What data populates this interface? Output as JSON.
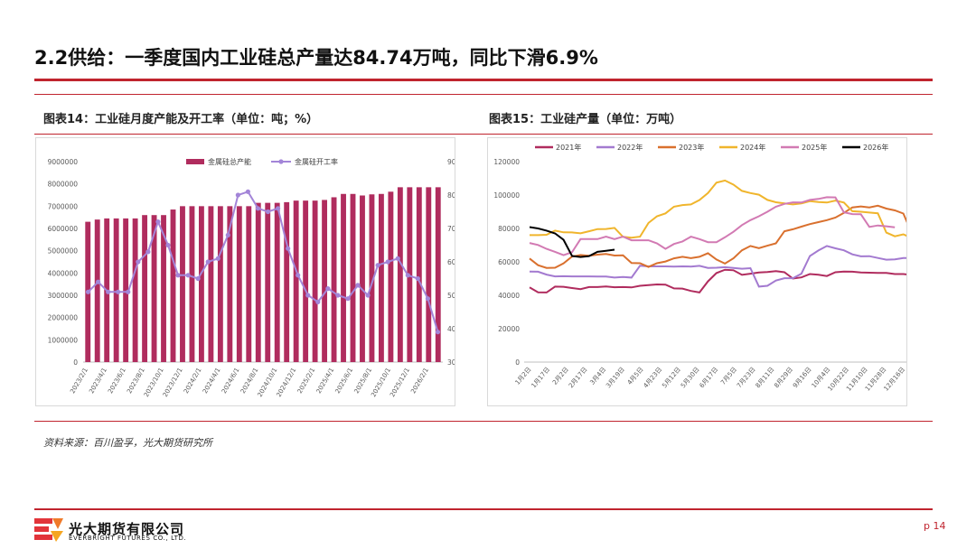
{
  "page": {
    "title": "2.2供给：一季度国内工业硅总产量达84.74万吨，同比下滑6.9%",
    "source": "资料来源：百川盈孚，光大期货研究所",
    "company_cn": "光大期货有限公司",
    "company_en": "EVERBRIGHT FUTURES CO., LTD.",
    "page_number": "p 14"
  },
  "charts": [
    {
      "caption": "图表14：工业硅月度产能及开工率（单位：吨；%）"
    },
    {
      "caption": "图表15：工业硅产量（单位：万吨）"
    }
  ],
  "colors": {
    "accent": "#c0242e",
    "bar": "#b02c5e",
    "rate_line": "#a385d8"
  },
  "chart_data": [
    {
      "type": "bar",
      "title": "",
      "xlabel": "",
      "ylabel": "",
      "ylim": [
        0,
        9000000
      ],
      "y2lim": [
        30,
        90
      ],
      "yticks": [
        "0",
        "1000000",
        "2000000",
        "3000000",
        "4000000",
        "5000000",
        "6000000",
        "7000000",
        "8000000",
        "9000000"
      ],
      "y2ticks": [
        "30",
        "40",
        "50",
        "60",
        "70",
        "80",
        "90"
      ],
      "x_tick_labels": [
        "2023/2/1",
        "2023/4/1",
        "2023/6/1",
        "2023/8/1",
        "2023/10/1",
        "2023/12/1",
        "2024/2/1",
        "2024/4/1",
        "2024/6/1",
        "2024/8/1",
        "2024/10/1",
        "2024/12/1",
        "2025/2/1",
        "2025/4/1",
        "2025/6/1",
        "2025/8/1",
        "2025/10/1",
        "2025/12/1",
        "2026/2/1"
      ],
      "legend_position": "top",
      "series": [
        {
          "name": "金属硅总产能",
          "type": "bar",
          "axis": "left",
          "color": "#b02c5e",
          "values": [
            6300000,
            6400000,
            6450000,
            6450000,
            6450000,
            6450000,
            6600000,
            6600000,
            6600000,
            6850000,
            7000000,
            7000000,
            7000000,
            7000000,
            7000000,
            7000000,
            7000000,
            7000000,
            7150000,
            7150000,
            7150000,
            7180000,
            7250000,
            7250000,
            7250000,
            7280000,
            7400000,
            7550000,
            7550000,
            7480000,
            7530000,
            7550000,
            7650000,
            7850000,
            7850000,
            7850000,
            7850000,
            7850000
          ]
        },
        {
          "name": "金属硅开工率",
          "type": "line",
          "axis": "right",
          "color": "#a385d8",
          "values": [
            51,
            54,
            51,
            51,
            51,
            60,
            63,
            72,
            65,
            56,
            56,
            55,
            60,
            61,
            68,
            80,
            81,
            76,
            75,
            76,
            64,
            56,
            50,
            48,
            52,
            50,
            49,
            53,
            50,
            59,
            60,
            61,
            56,
            55,
            49,
            39
          ]
        }
      ]
    },
    {
      "type": "line",
      "title": "",
      "xlabel": "",
      "ylabel": "",
      "ylim": [
        0,
        120000
      ],
      "yticks": [
        "0",
        "20000",
        "40000",
        "60000",
        "80000",
        "100000",
        "120000"
      ],
      "x_tick_labels": [
        "1月2日",
        "1月17日",
        "2月2日",
        "2月17日",
        "3月4日",
        "3月19日",
        "4月5日",
        "4月23日",
        "5月12日",
        "5月30日",
        "6月17日",
        "7月5日",
        "7月23日",
        "8月11日",
        "8月29日",
        "9月16日",
        "10月4日",
        "10月22日",
        "11月10日",
        "11月28日",
        "12月16日"
      ],
      "legend_position": "top",
      "series": [
        {
          "name": "2021年",
          "color": "#b02c5e",
          "values": [
            44700,
            41800,
            41700,
            45200,
            45100,
            44300,
            43700,
            44900,
            44900,
            45300,
            44800,
            44900,
            44700,
            45700,
            46100,
            46500,
            46400,
            44100,
            44000,
            42600,
            41700,
            48300,
            53300,
            55300,
            55000,
            52200,
            52900,
            53700,
            53900,
            54500,
            53800,
            50000,
            50700,
            52700,
            52300,
            51500,
            53800,
            54200,
            54100,
            53700,
            53500,
            53400,
            53400,
            52700,
            52700,
            52200
          ]
        },
        {
          "name": "2022年",
          "color": "#a37ad0",
          "values": [
            54200,
            54100,
            52400,
            51300,
            51400,
            51300,
            51300,
            51300,
            51200,
            51200,
            50600,
            51000,
            50600,
            57700,
            57300,
            57300,
            57300,
            57200,
            57300,
            57200,
            57600,
            56400,
            56500,
            56800,
            56400,
            55900,
            56200,
            45200,
            45700,
            48800,
            50200,
            50200,
            52900,
            63500,
            66800,
            69500,
            68100,
            66900,
            64500,
            63300,
            63400,
            62300,
            61300,
            61500,
            62300,
            62300
          ]
        },
        {
          "name": "2023年",
          "color": "#d9702e",
          "values": [
            62000,
            58000,
            56400,
            56500,
            59100,
            63200,
            64100,
            63700,
            64300,
            64700,
            63800,
            63900,
            59300,
            59200,
            57000,
            59200,
            60200,
            62100,
            63000,
            62200,
            63000,
            65200,
            61400,
            59000,
            62100,
            66900,
            69500,
            68200,
            69700,
            71100,
            78300,
            79500,
            81100,
            82600,
            83800,
            85000,
            86500,
            89300,
            92600,
            93200,
            92600,
            93600,
            91900,
            90800,
            88900,
            77200
          ]
        },
        {
          "name": "2024年",
          "color": "#f0b52c",
          "values": [
            76000,
            76000,
            76200,
            78700,
            77700,
            77600,
            77100,
            78300,
            79600,
            79700,
            80300,
            75000,
            74500,
            75100,
            83300,
            87300,
            89000,
            93000,
            94000,
            94400,
            97000,
            101200,
            107400,
            108700,
            106200,
            102500,
            101200,
            100200,
            97100,
            95700,
            95000,
            94400,
            95000,
            96300,
            95800,
            95500,
            96700,
            95500,
            90300,
            90000,
            89500,
            89100,
            77500,
            75300,
            76500,
            74200
          ]
        },
        {
          "name": "2025年",
          "color": "#d27ab3",
          "values": [
            71300,
            70100,
            67800,
            66000,
            64000,
            65800,
            73600,
            73600,
            73600,
            75100,
            73600,
            75100,
            72900,
            72900,
            72900,
            71100,
            67800,
            70700,
            72200,
            75100,
            73600,
            71800,
            71800,
            74700,
            78000,
            82000,
            85000,
            87300,
            90000,
            93000,
            94700,
            95600,
            95500,
            97100,
            97700,
            98700,
            98600,
            89700,
            88600,
            88500,
            80900,
            81800,
            81300,
            80700
          ]
        },
        {
          "name": "2026年",
          "color": "#000000",
          "values": [
            80800,
            80000,
            78700,
            77000,
            73200,
            63500,
            62900,
            63400,
            66000,
            66600,
            67300
          ]
        }
      ]
    }
  ]
}
